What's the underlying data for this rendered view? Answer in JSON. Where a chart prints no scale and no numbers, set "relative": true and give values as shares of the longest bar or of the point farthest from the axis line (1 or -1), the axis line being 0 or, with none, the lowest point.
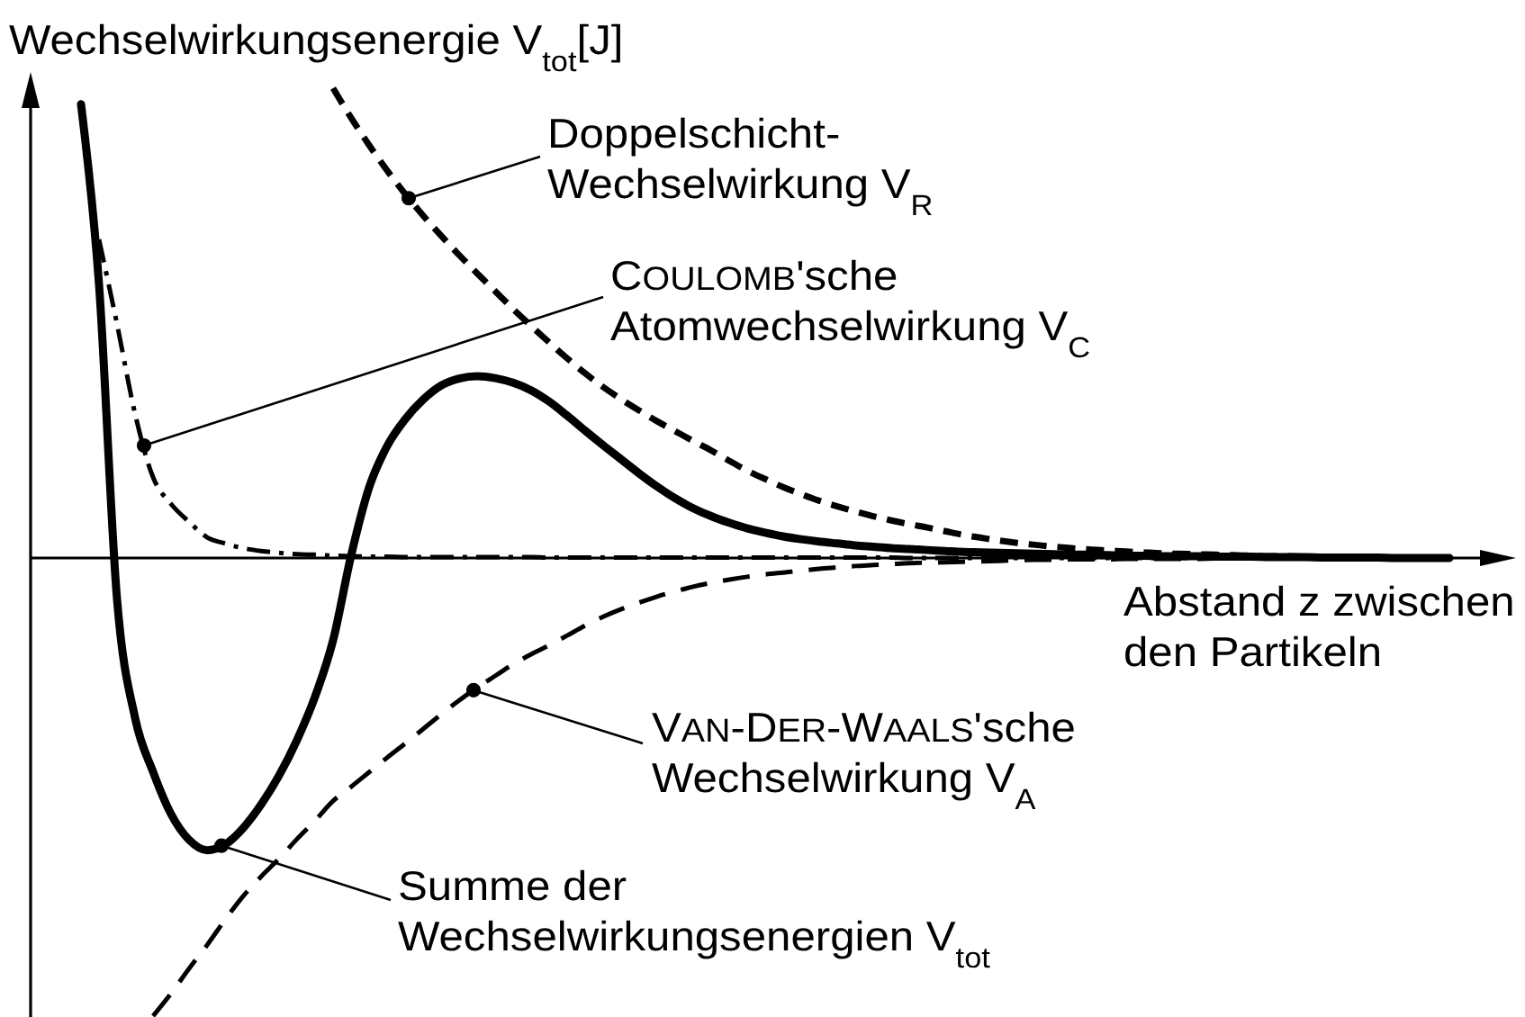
{
  "chart_data": {
    "type": "line",
    "relative": true,
    "xlabel": "Abstand z zwischen\nden Partikeln",
    "ylabel": "Wechselwirkungsenergie V$_{tot}$[J]",
    "annotations": [
      "Doppelschicht-\nWechselwirkung V$_{R}$",
      "COULOMB'sche\nAtomwechselwirkung V$_{C}$",
      "VAN-DER-WAALS'sche\nWechselwirkung V$_{A}$",
      "Summe der\nWechselwirkungsenergien V$_{tot}$"
    ],
    "categories": [
      null,
      null,
      null,
      null,
      null,
      null,
      null,
      null,
      null,
      null,
      null,
      null,
      null,
      null,
      null,
      null,
      null,
      null,
      null,
      null,
      null,
      null,
      null,
      null,
      null,
      null,
      null,
      null,
      null,
      null,
      null,
      null,
      null,
      null,
      null,
      null,
      null,
      null,
      null,
      null,
      null,
      null,
      null,
      null,
      null,
      null,
      null,
      null,
      null,
      null,
      null,
      null,
      null,
      null,
      null,
      null,
      null,
      null,
      null,
      null,
      null,
      null,
      null,
      null,
      null,
      null,
      null,
      null,
      null,
      null,
      null,
      null,
      null,
      null,
      null,
      null,
      null
    ],
    "series": [
      {
        "color": "#000000",
        "line_style": "solid",
        "values": [
          0.966,
          0.582,
          -0.088,
          -0.34,
          -0.455,
          -0.545,
          -0.6,
          -0.622,
          -0.61,
          -0.575,
          -0.525,
          -0.463,
          -0.387,
          -0.295,
          -0.175,
          0.005,
          0.15,
          0.238,
          0.295,
          0.337,
          0.367,
          0.382,
          0.387,
          0.383,
          0.373,
          0.357,
          0.333,
          0.303,
          0.271,
          0.24,
          0.21,
          0.18,
          0.152,
          0.127,
          0.106,
          0.089,
          0.075,
          0.063,
          0.054,
          0.046,
          0.04,
          0.035,
          0.031,
          0.027,
          0.024,
          0.021,
          0.019,
          0.017,
          0.015,
          0.013,
          0.012,
          0.011,
          0.01,
          0.009,
          0.008,
          0.007,
          0.007,
          0.006,
          0.005,
          0.005,
          0.004,
          0.004,
          0.004,
          0.003,
          0.003,
          0.003,
          0.002,
          0.002,
          0.002,
          0.001,
          0.001,
          0.001,
          0.001,
          0,
          0,
          0,
          0
        ]
      },
      {
        "color": "#000000",
        "line_style": "dashed",
        "values": [
          null,
          null,
          null,
          null,
          null,
          null,
          null,
          null,
          null,
          null,
          null,
          null,
          null,
          null,
          1.0,
          0.937,
          0.879,
          0.825,
          0.775,
          0.729,
          0.686,
          0.645,
          0.606,
          0.568,
          0.53,
          0.494,
          0.459,
          0.425,
          0.393,
          0.364,
          0.338,
          0.314,
          0.291,
          0.27,
          0.249,
          0.229,
          0.207,
          0.186,
          0.168,
          0.151,
          0.136,
          0.122,
          0.11,
          0.099,
          0.089,
          0.08,
          0.072,
          0.065,
          0.057,
          0.049,
          0.043,
          0.037,
          0.032,
          0.028,
          0.024,
          0.021,
          0.018,
          0.016,
          0.014,
          0.012,
          0.01,
          0.009,
          0.008,
          0.007,
          0.006,
          0.005,
          0.004,
          0.004,
          0.003,
          0.003,
          0.002,
          0.002,
          0.001,
          0.001,
          0.001,
          0,
          0
        ]
      },
      {
        "color": "#000000",
        "line_style": "dashdot",
        "values": [
          null,
          0.678,
          0.498,
          0.307,
          0.172,
          0.115,
          0.077,
          0.044,
          0.031,
          0.021,
          0.015,
          0.011,
          0.008,
          0.007,
          0.005,
          0.004,
          0.003,
          0.003,
          0.002,
          0.002,
          0.002,
          0.002,
          0.002,
          0.002,
          0.002,
          0.002,
          0.001,
          0.001,
          0.001,
          0.001,
          0.001,
          0.001,
          0.001,
          0.001,
          0.001,
          0.001,
          0.001,
          0.001,
          0.001,
          0.001,
          0.001,
          0.001,
          0.001,
          0.001,
          0.001,
          0.001,
          0,
          0,
          0,
          0,
          0,
          0,
          0,
          0,
          0,
          0,
          0,
          0,
          0,
          0,
          0,
          0,
          0,
          0,
          0,
          0,
          0,
          0,
          0,
          0,
          0,
          0,
          0,
          0,
          0,
          0,
          0
        ]
      },
      {
        "color": "#000000",
        "line_style": "dashed",
        "values": [
          null,
          null,
          null,
          null,
          -0.975,
          -0.927,
          -0.874,
          -0.824,
          -0.77,
          -0.72,
          -0.678,
          -0.64,
          -0.598,
          -0.559,
          -0.517,
          -0.487,
          -0.456,
          -0.425,
          -0.395,
          -0.364,
          -0.333,
          -0.303,
          -0.276,
          -0.251,
          -0.226,
          -0.205,
          -0.186,
          -0.165,
          -0.144,
          -0.125,
          -0.109,
          -0.095,
          -0.082,
          -0.071,
          -0.061,
          -0.053,
          -0.046,
          -0.04,
          -0.035,
          -0.031,
          -0.027,
          -0.023,
          -0.02,
          -0.017,
          -0.015,
          -0.013,
          -0.011,
          -0.01,
          -0.009,
          -0.008,
          -0.007,
          -0.006,
          -0.005,
          -0.004,
          -0.004,
          -0.003,
          -0.003,
          -0.003,
          -0.002,
          -0.002,
          -0.002,
          -0.002,
          -0.002,
          -0.001,
          -0.001,
          -0.001,
          -0.001,
          -0.001,
          -0.001,
          -0.001,
          -0.001,
          0,
          0,
          0,
          0,
          0,
          0
        ]
      }
    ]
  }
}
